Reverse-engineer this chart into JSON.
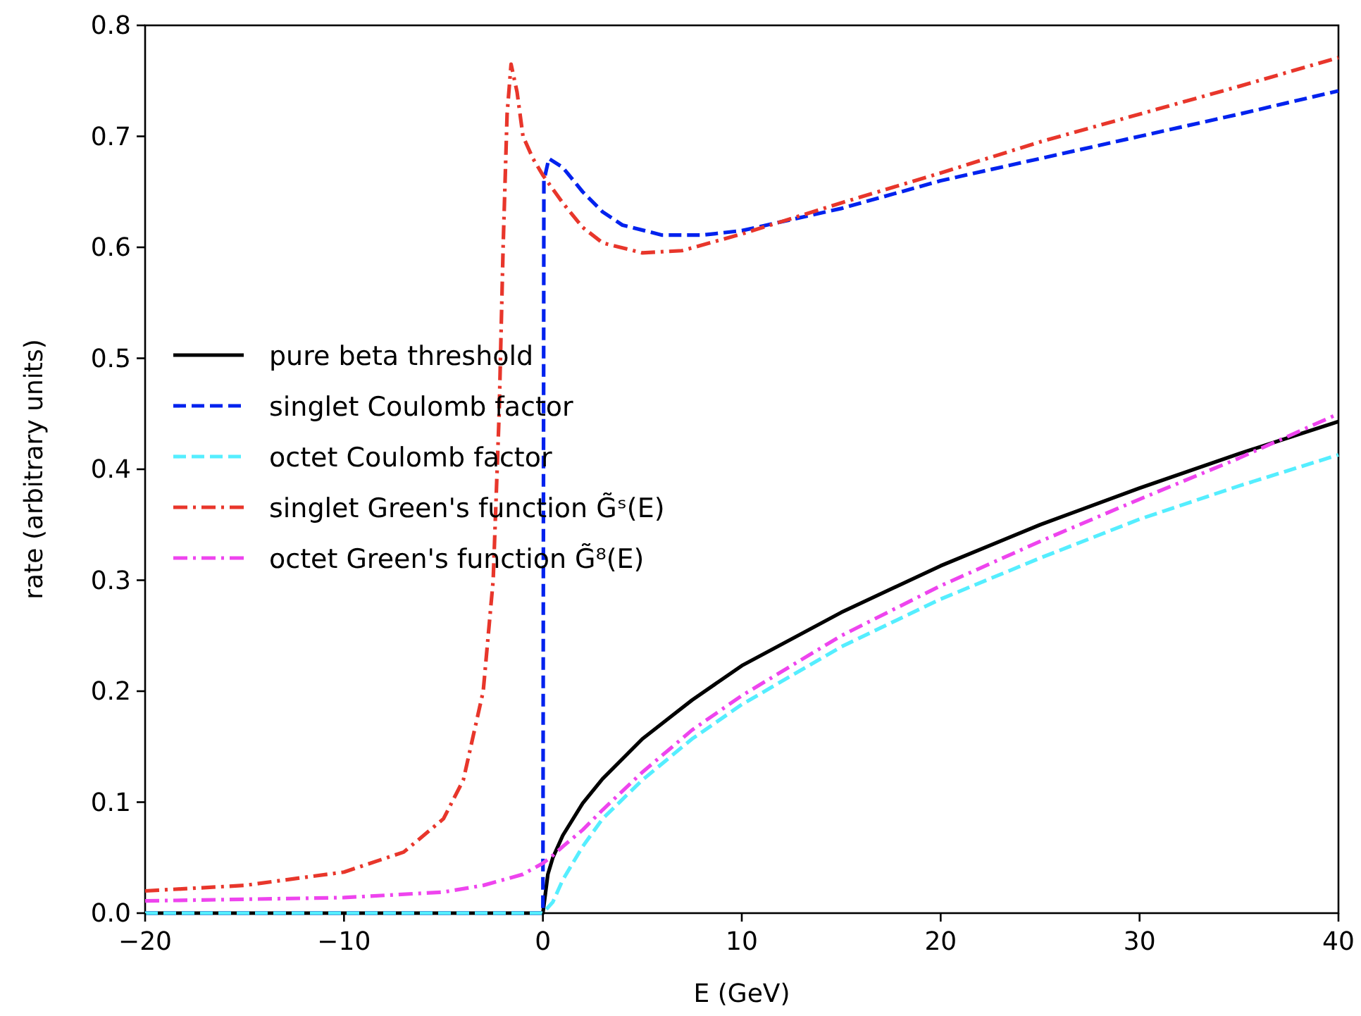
{
  "chart_data": {
    "type": "line",
    "xlabel": "E (GeV)",
    "ylabel": "rate (arbitrary units)",
    "xlim": [
      -20,
      40
    ],
    "xticks": [
      {
        "value": -20,
        "label": "−20"
      },
      {
        "value": -10,
        "label": "−10"
      },
      0,
      10,
      20,
      30,
      40
    ],
    "ylim": [
      0,
      0.8
    ],
    "yticks": [
      {
        "value": 0,
        "label": "0.0"
      },
      0.1,
      0.2,
      0.3,
      0.4,
      0.5,
      0.6,
      0.7,
      0.8
    ],
    "grid": false,
    "legend": "center left",
    "series": [
      {
        "name": "pure beta threshold",
        "color": "#000000",
        "line_style": "solid",
        "x": [
          -20,
          0,
          0.25,
          0.5,
          1,
          2,
          3,
          5,
          7.5,
          10,
          15,
          20,
          25,
          30,
          35,
          40
        ],
        "values": [
          0,
          0,
          0.035,
          0.05,
          0.07,
          0.099,
          0.121,
          0.157,
          0.192,
          0.223,
          0.271,
          0.313,
          0.35,
          0.383,
          0.414,
          0.443
        ]
      },
      {
        "name": "singlet Coulomb factor",
        "color": "#0022ee",
        "line_style": "dashed",
        "x": [
          -20,
          0,
          0.05,
          0.3,
          1,
          2,
          3,
          4,
          6,
          8,
          10,
          15,
          20,
          25,
          30,
          35,
          40
        ],
        "values": [
          0,
          0,
          0.66,
          0.68,
          0.672,
          0.65,
          0.632,
          0.62,
          0.611,
          0.611,
          0.615,
          0.635,
          0.66,
          0.68,
          0.7,
          0.72,
          0.741
        ]
      },
      {
        "name": "octet Coulomb factor",
        "color": "#55eeff",
        "line_style": "dashed",
        "x": [
          -20,
          0,
          0.5,
          1,
          2,
          3,
          5,
          7.5,
          10,
          15,
          20,
          25,
          30,
          35,
          40
        ],
        "values": [
          0,
          0,
          0.01,
          0.03,
          0.06,
          0.085,
          0.12,
          0.157,
          0.188,
          0.24,
          0.283,
          0.32,
          0.355,
          0.385,
          0.413
        ]
      },
      {
        "name": "singlet Green's function G̃ˢ(E)",
        "color": "#e8362b",
        "line_style": "dashdot",
        "x": [
          -20,
          -15,
          -10,
          -7,
          -5,
          -4,
          -3,
          -2.5,
          -2.2,
          -2,
          -1.8,
          -1.6,
          -1.3,
          -1,
          -0.5,
          0,
          1,
          2,
          3,
          5,
          7,
          10,
          15,
          20,
          25,
          30,
          35,
          40
        ],
        "values": [
          0.02,
          0.025,
          0.037,
          0.055,
          0.085,
          0.12,
          0.2,
          0.3,
          0.45,
          0.6,
          0.72,
          0.765,
          0.74,
          0.7,
          0.68,
          0.665,
          0.64,
          0.618,
          0.604,
          0.595,
          0.597,
          0.612,
          0.64,
          0.667,
          0.695,
          0.72,
          0.745,
          0.771
        ]
      },
      {
        "name": "octet Green's function G̃⁸(E)",
        "color": "#ee44ee",
        "line_style": "dashdot",
        "x": [
          -20,
          -10,
          -5,
          -3,
          -1,
          0,
          0.5,
          1,
          2,
          3,
          5,
          7.5,
          10,
          15,
          20,
          25,
          30,
          35,
          40
        ],
        "values": [
          0.011,
          0.014,
          0.019,
          0.025,
          0.035,
          0.045,
          0.052,
          0.06,
          0.075,
          0.093,
          0.127,
          0.165,
          0.196,
          0.25,
          0.295,
          0.335,
          0.373,
          0.41,
          0.45
        ]
      }
    ]
  }
}
